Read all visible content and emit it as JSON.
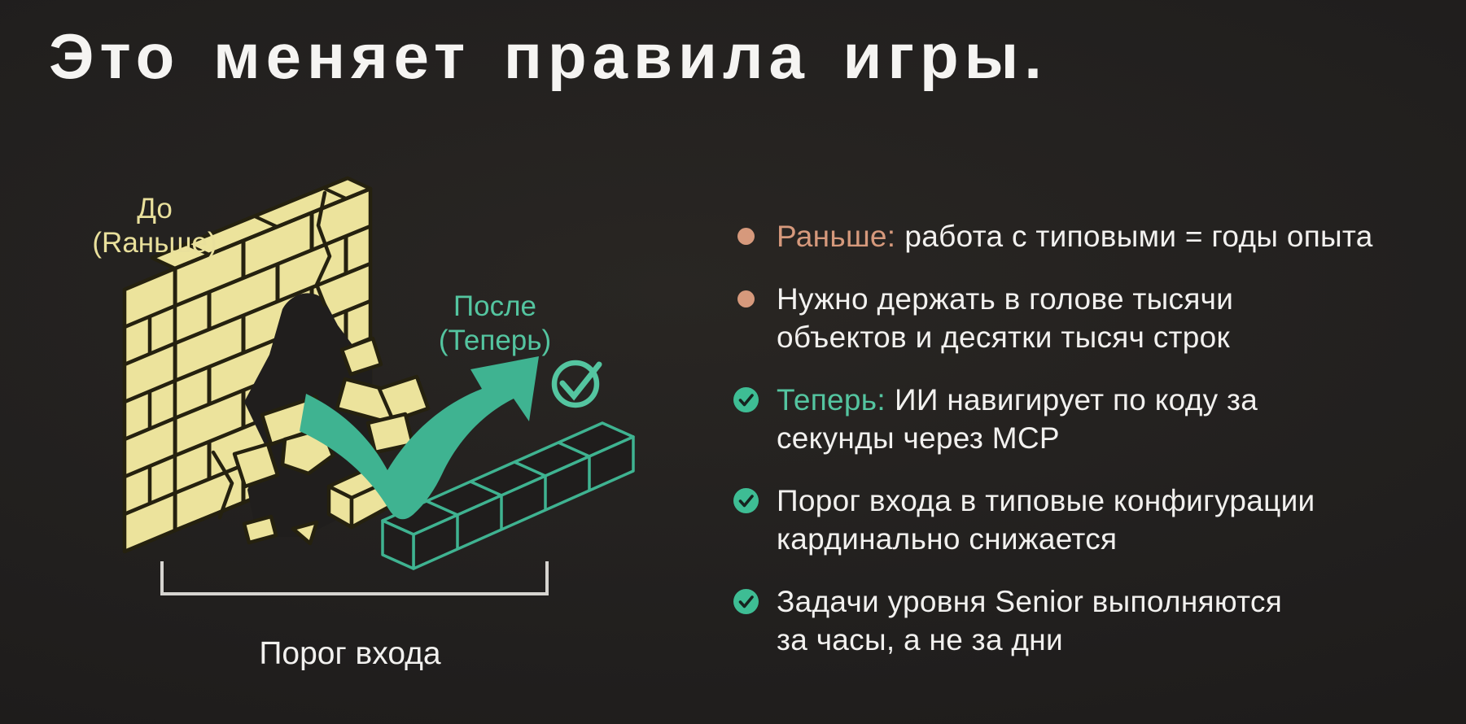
{
  "slide": {
    "title": "Это меняет правила игры."
  },
  "diagram": {
    "before_label": {
      "line1": "До",
      "line2": "(Rаньше)"
    },
    "after_label": {
      "line1": "После",
      "line2": "(Теперь)"
    },
    "caption": "Порог входа"
  },
  "bullets": [
    {
      "icon": "bullet-dot",
      "prefix": "Раньше:",
      "lines": [
        "работа с типовыми = годы опыта",
        ""
      ]
    },
    {
      "icon": "bullet-dot",
      "prefix": "",
      "lines": [
        "Нужно держать в голове тысячи",
        "объектов и десятки тысяч строк"
      ]
    },
    {
      "icon": "check-circle",
      "prefix": "Теперь:",
      "lines": [
        "ИИ навигирует по коду за",
        "секунды через MCP"
      ]
    },
    {
      "icon": "check-circle",
      "prefix": "",
      "lines": [
        "Порог входа в типовые конфигурации",
        "кардинально снижается"
      ]
    },
    {
      "icon": "check-circle",
      "prefix": "",
      "lines": [
        "Задачи уровня Senior выполняются",
        "за часы, а не за дни"
      ]
    }
  ],
  "colors": {
    "background": "#201e1d",
    "title_text": "#f5f4f2",
    "body_text": "#f2f1ef",
    "accent_teal": "#3fb391",
    "accent_teal_light": "#54c5a0",
    "accent_green": "#3ebd94",
    "accent_salmon": "#d6997c",
    "brick_yellow": "#ece39c",
    "brick_outline": "#25210f",
    "bracket_gray": "#d6d4d0",
    "label_yellow": "#e9e09c"
  }
}
